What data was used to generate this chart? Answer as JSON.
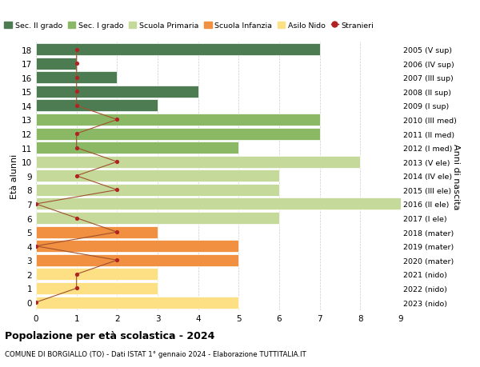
{
  "ages": [
    0,
    1,
    2,
    3,
    4,
    5,
    6,
    7,
    8,
    9,
    10,
    11,
    12,
    13,
    14,
    15,
    16,
    17,
    18
  ],
  "years": [
    "2023 (nido)",
    "2022 (nido)",
    "2021 (nido)",
    "2020 (mater)",
    "2019 (mater)",
    "2018 (mater)",
    "2017 (I ele)",
    "2016 (II ele)",
    "2015 (III ele)",
    "2014 (IV ele)",
    "2013 (V ele)",
    "2012 (I med)",
    "2011 (II med)",
    "2010 (III med)",
    "2009 (I sup)",
    "2008 (II sup)",
    "2007 (III sup)",
    "2006 (IV sup)",
    "2005 (V sup)"
  ],
  "bar_values": [
    5,
    3,
    3,
    5,
    5,
    3,
    6,
    9.5,
    6,
    6,
    8,
    5,
    7,
    7,
    3,
    4,
    2,
    1,
    7
  ],
  "bar_colors": [
    "#fce083",
    "#fce083",
    "#fce083",
    "#f09040",
    "#f09040",
    "#f09040",
    "#c5d99a",
    "#c5d99a",
    "#c5d99a",
    "#c5d99a",
    "#c5d99a",
    "#8ab865",
    "#8ab865",
    "#8ab865",
    "#4e7c52",
    "#4e7c52",
    "#4e7c52",
    "#4e7c52",
    "#4e7c52"
  ],
  "stranieri_values": [
    0,
    1,
    1,
    2,
    0,
    2,
    1,
    0,
    2,
    1,
    2,
    1,
    1,
    2,
    1,
    1,
    1,
    1,
    1
  ],
  "title_bold": "Popolazione per età scolastica - 2024",
  "subtitle": "COMUNE DI BORGIALLO (TO) - Dati ISTAT 1° gennaio 2024 - Elaborazione TUTTITALIA.IT",
  "ylabel": "Età alunni",
  "ylabel_right": "Anni di nascita",
  "xlim": [
    0,
    9
  ],
  "legend_items": [
    {
      "label": "Sec. II grado",
      "color": "#4e7c52"
    },
    {
      "label": "Sec. I grado",
      "color": "#8ab865"
    },
    {
      "label": "Scuola Primaria",
      "color": "#c5d99a"
    },
    {
      "label": "Scuola Infanzia",
      "color": "#f09040"
    },
    {
      "label": "Asilo Nido",
      "color": "#fce083"
    },
    {
      "label": "Stranieri",
      "color": "#b22222"
    }
  ],
  "background_color": "#ffffff",
  "grid_color": "#cccccc",
  "bar_height": 0.85
}
